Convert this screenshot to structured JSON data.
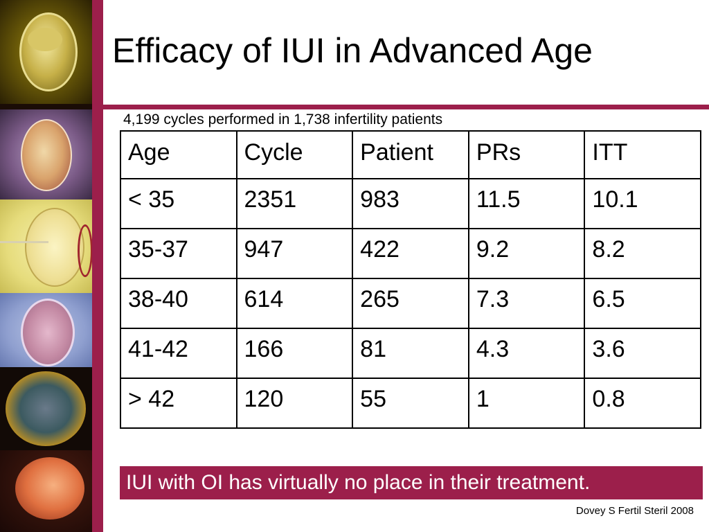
{
  "title": "Efficacy of IUI in Advanced Age",
  "subtitle": "4,199 cycles performed in 1,738 infertility patients",
  "table": {
    "headers": [
      "Age",
      "Cycle",
      "Patient",
      "PRs",
      "ITT"
    ],
    "rows": [
      [
        "< 35",
        "2351",
        "983",
        "11.5",
        "10.1"
      ],
      [
        "35-37",
        "947",
        "422",
        "9.2",
        "8.2"
      ],
      [
        "38-40",
        "614",
        "265",
        "7.3",
        "6.5"
      ],
      [
        "41-42",
        "166",
        "81",
        "4.3",
        "3.6"
      ],
      [
        "> 42",
        "120",
        "55",
        "1",
        "0.8"
      ]
    ]
  },
  "note": "IUI with OI has virtually no place in their treatment.",
  "citation": "Dovey S Fertil Steril 2008",
  "colors": {
    "accent": "#9c1f4b"
  },
  "images": [
    {
      "name": "embryo-2cell-image"
    },
    {
      "name": "embryo-4cell-image"
    },
    {
      "name": "icsi-injection-image"
    },
    {
      "name": "blastocyst-image"
    },
    {
      "name": "hatching-embryo-image"
    },
    {
      "name": "fetus-image"
    }
  ]
}
